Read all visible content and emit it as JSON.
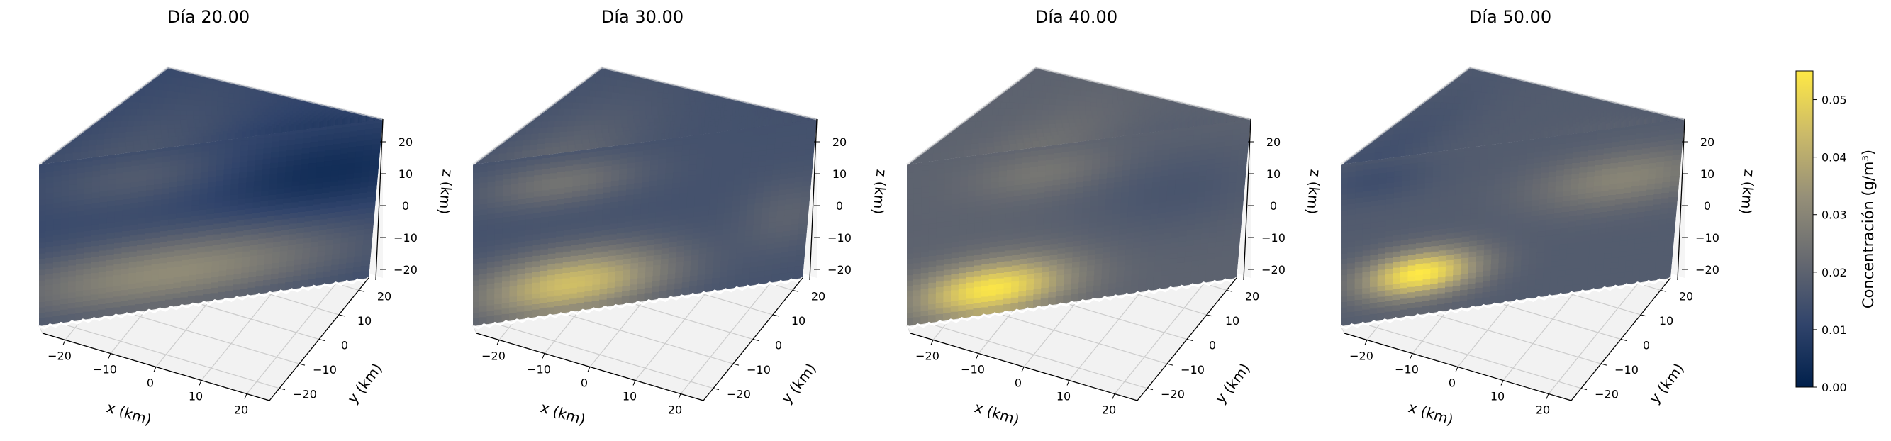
{
  "chart_data": [
    {
      "type": "volumetric-3d",
      "title": "Día 20.00",
      "xlabel": "x (km)",
      "ylabel": "y (km)",
      "zlabel": "z (km)",
      "xlim": [
        -25,
        25
      ],
      "ylim": [
        -25,
        25
      ],
      "zlim": [
        -25,
        25
      ],
      "xticks": [
        -20,
        -10,
        0,
        10,
        20
      ],
      "yticks": [
        -20,
        -10,
        0,
        10,
        20
      ],
      "zticks": [
        -20,
        -10,
        0,
        10,
        20
      ],
      "grid": true,
      "base": 0.012,
      "blobs": [
        {
          "x": -5,
          "z": -15,
          "amp": 0.02,
          "sx": 18,
          "sz": 8
        },
        {
          "x": 18,
          "z": 10,
          "amp": -0.008,
          "sx": 12,
          "sz": 9
        },
        {
          "x": -10,
          "z": 16,
          "amp": 0.006,
          "sx": 10,
          "sz": 6
        }
      ]
    },
    {
      "type": "volumetric-3d",
      "title": "Día 30.00",
      "xlabel": "x (km)",
      "ylabel": "y (km)",
      "zlabel": "z (km)",
      "xlim": [
        -25,
        25
      ],
      "ylim": [
        -25,
        25
      ],
      "zlim": [
        -25,
        25
      ],
      "xticks": [
        -20,
        -10,
        0,
        10,
        20
      ],
      "yticks": [
        -20,
        -10,
        0,
        10,
        20
      ],
      "zticks": [
        -20,
        -10,
        0,
        10,
        20
      ],
      "grid": true,
      "base": 0.015,
      "blobs": [
        {
          "x": -10,
          "z": -17,
          "amp": 0.03,
          "sx": 10,
          "sz": 7
        },
        {
          "x": -12,
          "z": 15,
          "amp": 0.01,
          "sx": 8,
          "sz": 5
        },
        {
          "x": 22,
          "z": -5,
          "amp": 0.005,
          "sx": 5,
          "sz": 8
        }
      ]
    },
    {
      "type": "volumetric-3d",
      "title": "Día 40.00",
      "xlabel": "x (km)",
      "ylabel": "y (km)",
      "zlabel": "z (km)",
      "xlim": [
        -25,
        25
      ],
      "ylim": [
        -25,
        25
      ],
      "zlim": [
        -25,
        25
      ],
      "xticks": [
        -20,
        -10,
        0,
        10,
        20
      ],
      "yticks": [
        -20,
        -10,
        0,
        10,
        20
      ],
      "zticks": [
        -20,
        -10,
        0,
        10,
        20
      ],
      "grid": true,
      "base": 0.02,
      "blobs": [
        {
          "x": -12,
          "z": -18,
          "amp": 0.034,
          "sx": 8,
          "sz": 6
        },
        {
          "x": -5,
          "z": 16,
          "amp": 0.006,
          "sx": 7,
          "sz": 5
        },
        {
          "x": 15,
          "z": 5,
          "amp": -0.004,
          "sx": 10,
          "sz": 10
        }
      ]
    },
    {
      "type": "volumetric-3d",
      "title": "Día 50.00",
      "xlabel": "x (km)",
      "ylabel": "y (km)",
      "zlabel": "z (km)",
      "xlim": [
        -25,
        25
      ],
      "ylim": [
        -25,
        25
      ],
      "zlim": [
        -25,
        25
      ],
      "xticks": [
        -20,
        -10,
        0,
        10,
        20
      ],
      "yticks": [
        -20,
        -10,
        0,
        10,
        20
      ],
      "zticks": [
        -20,
        -10,
        0,
        10,
        20
      ],
      "grid": true,
      "base": 0.018,
      "blobs": [
        {
          "x": -13,
          "z": -13,
          "amp": 0.037,
          "sx": 6,
          "sz": 5
        },
        {
          "x": 17,
          "z": 8,
          "amp": 0.012,
          "sx": 9,
          "sz": 6
        },
        {
          "x": -20,
          "z": 18,
          "amp": -0.004,
          "sx": 6,
          "sz": 5
        }
      ]
    }
  ],
  "colorbar": {
    "label": "Concentración (g/m³)",
    "min": 0.0,
    "max": 0.055,
    "ticks": [
      "0.00",
      "0.01",
      "0.02",
      "0.03",
      "0.04",
      "0.05"
    ],
    "colormap": "cividis",
    "colors": [
      "#00204c",
      "#31446b",
      "#666970",
      "#958f78",
      "#cbba69",
      "#ffe945"
    ]
  }
}
